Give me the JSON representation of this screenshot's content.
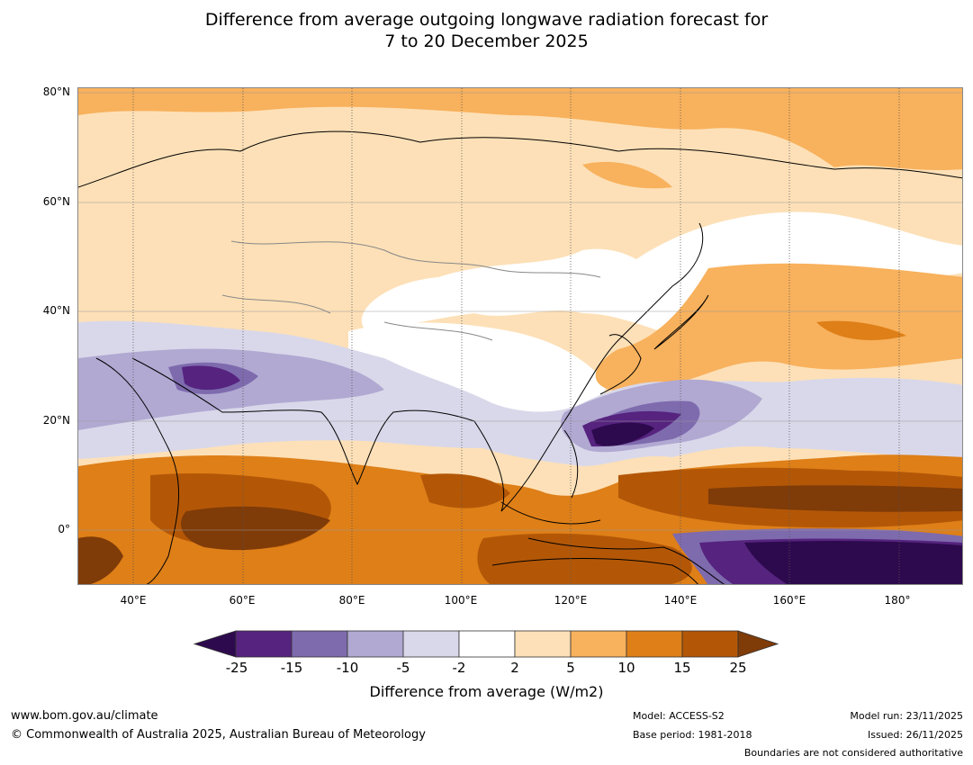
{
  "title_line1": "Difference from average outgoing longwave radiation forecast for",
  "title_line2": "7 to 20 December 2025",
  "map": {
    "lat_labels": [
      "80°N",
      "60°N",
      "40°N",
      "20°N",
      "0°"
    ],
    "lon_labels": [
      "40°E",
      "60°E",
      "80°E",
      "100°E",
      "120°E",
      "140°E",
      "160°E",
      "180°"
    ],
    "lon_range": [
      30,
      192
    ],
    "lat_range": [
      -10,
      81
    ]
  },
  "legend": {
    "title": "Difference from average (W/m2)",
    "ticks": [
      "-25",
      "-15",
      "-10",
      "-5",
      "-2",
      "2",
      "5",
      "10",
      "15",
      "25"
    ],
    "colors": [
      "#2d0a4e",
      "#56237f",
      "#7e6bae",
      "#b1a9d2",
      "#d9d8ea",
      "#ffffff",
      "#fde0b7",
      "#f8b15c",
      "#de7f18",
      "#b35707",
      "#7f3b08"
    ]
  },
  "footer": {
    "url": "www.bom.gov.au/climate",
    "copyright": "© Commonwealth of Australia 2025, Australian Bureau of Meteorology",
    "model": "Model: ACCESS-S2",
    "base_period": "Base period: 1981-2018",
    "model_run": "Model run: 23/11/2025",
    "issued": "Issued: 26/11/2025",
    "disclaimer": "Boundaries are not considered authoritative"
  }
}
